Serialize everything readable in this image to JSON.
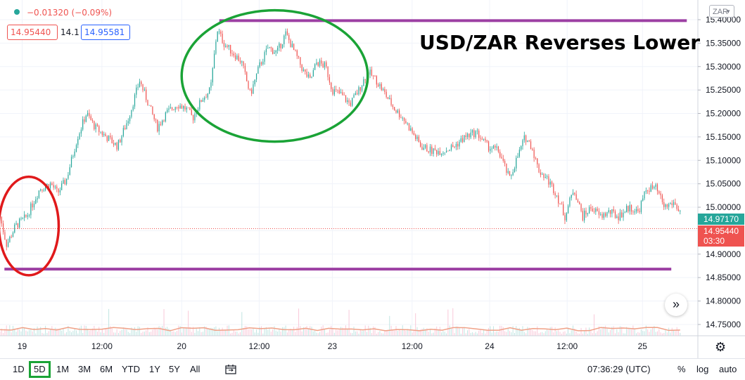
{
  "header": {
    "change_text": "−0.01320 (−0.09%)",
    "bid": "14.95440",
    "spread": "14.1",
    "ask": "14.95581",
    "currency_button": "ZAR",
    "headline": "USD/ZAR Reverses Lower"
  },
  "price_tags": {
    "green_price": "14.97170",
    "red_price": "14.95440",
    "countdown": "03:30"
  },
  "toolbar": {
    "ranges": [
      "1D",
      "5D",
      "1M",
      "3M",
      "6M",
      "YTD",
      "1Y",
      "5Y",
      "All"
    ],
    "active_range": "5D",
    "time_readout": "07:36:29 (UTC)",
    "right_items": [
      "%",
      "log",
      "auto"
    ]
  },
  "colors": {
    "up": "#26a69a",
    "down": "#ef5350",
    "volume": "#f0a187",
    "annotation_purple": "#9c3fa3",
    "annotation_green": "#1aa336",
    "annotation_red": "#e0191b"
  },
  "chart_data": {
    "type": "candlestick",
    "instrument": "USD/ZAR",
    "ylim": [
      14.72,
      15.43
    ],
    "y_ticks": [
      "15.40000",
      "15.35000",
      "15.30000",
      "15.25000",
      "15.20000",
      "15.15000",
      "15.10000",
      "15.05000",
      "15.00000",
      "14.95000",
      "14.90000",
      "14.85000",
      "14.80000",
      "14.75000"
    ],
    "x_ticks": [
      "19",
      "12:00",
      "20",
      "12:00",
      "23",
      "12:00",
      "24",
      "12:00",
      "25"
    ],
    "price_path": [
      {
        "x": 0.0,
        "y": 14.98
      },
      {
        "x": 0.3,
        "y": 14.92
      },
      {
        "x": 0.7,
        "y": 14.96
      },
      {
        "x": 1.2,
        "y": 14.98
      },
      {
        "x": 1.8,
        "y": 15.04
      },
      {
        "x": 2.3,
        "y": 15.05
      },
      {
        "x": 2.6,
        "y": 15.03
      },
      {
        "x": 3.0,
        "y": 15.06
      },
      {
        "x": 3.5,
        "y": 15.15
      },
      {
        "x": 3.9,
        "y": 15.2
      },
      {
        "x": 4.3,
        "y": 15.17
      },
      {
        "x": 4.8,
        "y": 15.15
      },
      {
        "x": 5.3,
        "y": 15.13
      },
      {
        "x": 5.8,
        "y": 15.19
      },
      {
        "x": 6.3,
        "y": 15.27
      },
      {
        "x": 6.7,
        "y": 15.22
      },
      {
        "x": 7.1,
        "y": 15.17
      },
      {
        "x": 7.5,
        "y": 15.2
      },
      {
        "x": 8.0,
        "y": 15.22
      },
      {
        "x": 8.4,
        "y": 15.21
      },
      {
        "x": 8.7,
        "y": 15.19
      },
      {
        "x": 9.1,
        "y": 15.23
      },
      {
        "x": 9.5,
        "y": 15.25
      },
      {
        "x": 9.8,
        "y": 15.38
      },
      {
        "x": 10.1,
        "y": 15.35
      },
      {
        "x": 10.5,
        "y": 15.33
      },
      {
        "x": 10.9,
        "y": 15.31
      },
      {
        "x": 11.3,
        "y": 15.24
      },
      {
        "x": 11.7,
        "y": 15.3
      },
      {
        "x": 12.1,
        "y": 15.34
      },
      {
        "x": 12.5,
        "y": 15.33
      },
      {
        "x": 12.9,
        "y": 15.37
      },
      {
        "x": 13.3,
        "y": 15.33
      },
      {
        "x": 13.7,
        "y": 15.29
      },
      {
        "x": 14.0,
        "y": 15.27
      },
      {
        "x": 14.3,
        "y": 15.31
      },
      {
        "x": 14.7,
        "y": 15.3
      },
      {
        "x": 15.0,
        "y": 15.25
      },
      {
        "x": 15.4,
        "y": 15.24
      },
      {
        "x": 15.8,
        "y": 15.22
      },
      {
        "x": 16.2,
        "y": 15.25
      },
      {
        "x": 16.6,
        "y": 15.29
      },
      {
        "x": 17.0,
        "y": 15.27
      },
      {
        "x": 17.4,
        "y": 15.24
      },
      {
        "x": 17.8,
        "y": 15.21
      },
      {
        "x": 18.2,
        "y": 15.19
      },
      {
        "x": 18.6,
        "y": 15.16
      },
      {
        "x": 19.0,
        "y": 15.13
      },
      {
        "x": 19.5,
        "y": 15.12
      },
      {
        "x": 20.0,
        "y": 15.12
      },
      {
        "x": 20.5,
        "y": 15.13
      },
      {
        "x": 21.0,
        "y": 15.15
      },
      {
        "x": 21.5,
        "y": 15.16
      },
      {
        "x": 22.0,
        "y": 15.13
      },
      {
        "x": 22.5,
        "y": 15.12
      },
      {
        "x": 23.0,
        "y": 15.06
      },
      {
        "x": 23.3,
        "y": 15.1
      },
      {
        "x": 23.7,
        "y": 15.15
      },
      {
        "x": 24.0,
        "y": 15.13
      },
      {
        "x": 24.3,
        "y": 15.08
      },
      {
        "x": 24.7,
        "y": 15.06
      },
      {
        "x": 25.1,
        "y": 15.03
      },
      {
        "x": 25.5,
        "y": 14.98
      },
      {
        "x": 25.9,
        "y": 15.04
      },
      {
        "x": 26.3,
        "y": 14.98
      },
      {
        "x": 26.7,
        "y": 15.0
      },
      {
        "x": 27.1,
        "y": 14.98
      },
      {
        "x": 27.5,
        "y": 14.99
      },
      {
        "x": 27.9,
        "y": 14.98
      },
      {
        "x": 28.4,
        "y": 15.0
      },
      {
        "x": 28.8,
        "y": 14.99
      },
      {
        "x": 29.2,
        "y": 15.04
      },
      {
        "x": 29.6,
        "y": 15.04
      },
      {
        "x": 30.0,
        "y": 15.0
      },
      {
        "x": 30.4,
        "y": 15.01
      },
      {
        "x": 30.7,
        "y": 14.99
      }
    ],
    "annotations": [
      {
        "kind": "hline",
        "y": 15.398,
        "x_from": 9.9,
        "x_to": 31.0
      },
      {
        "kind": "hline",
        "y": 14.868,
        "x_from": 0.2,
        "x_to": 30.3
      },
      {
        "kind": "ellipse",
        "color": "green",
        "cx": 12.4,
        "cy": 15.28,
        "rx": 4.2,
        "ry": 0.14
      },
      {
        "kind": "ellipse",
        "color": "red",
        "cx": 1.3,
        "cy": 14.96,
        "rx": 1.35,
        "ry": 0.105
      }
    ],
    "current_price": 14.9544,
    "green_tag_price": 14.9717
  }
}
